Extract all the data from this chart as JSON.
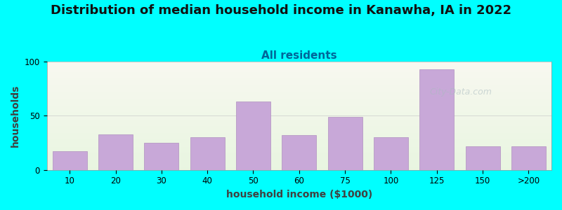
{
  "title": "Distribution of median household income in Kanawha, IA in 2022",
  "subtitle": "All residents",
  "xlabel": "household income ($1000)",
  "ylabel": "households",
  "background_color": "#00FFFF",
  "plot_bg_color_top": "#e8f5e0",
  "plot_bg_color_bottom": "#f8f8f0",
  "bar_color": "#c8a8d8",
  "bar_edge_color": "#b090c0",
  "categories": [
    "10",
    "20",
    "30",
    "40",
    "50",
    "60",
    "75",
    "100",
    "125",
    "150",
    ">200"
  ],
  "values": [
    17,
    33,
    25,
    30,
    63,
    32,
    49,
    30,
    93,
    22,
    22
  ],
  "ylim": [
    0,
    100
  ],
  "yticks": [
    0,
    50,
    100
  ],
  "title_fontsize": 13,
  "subtitle_fontsize": 11,
  "axis_label_fontsize": 10,
  "tick_fontsize": 8.5,
  "watermark_text": "City-Data.com"
}
